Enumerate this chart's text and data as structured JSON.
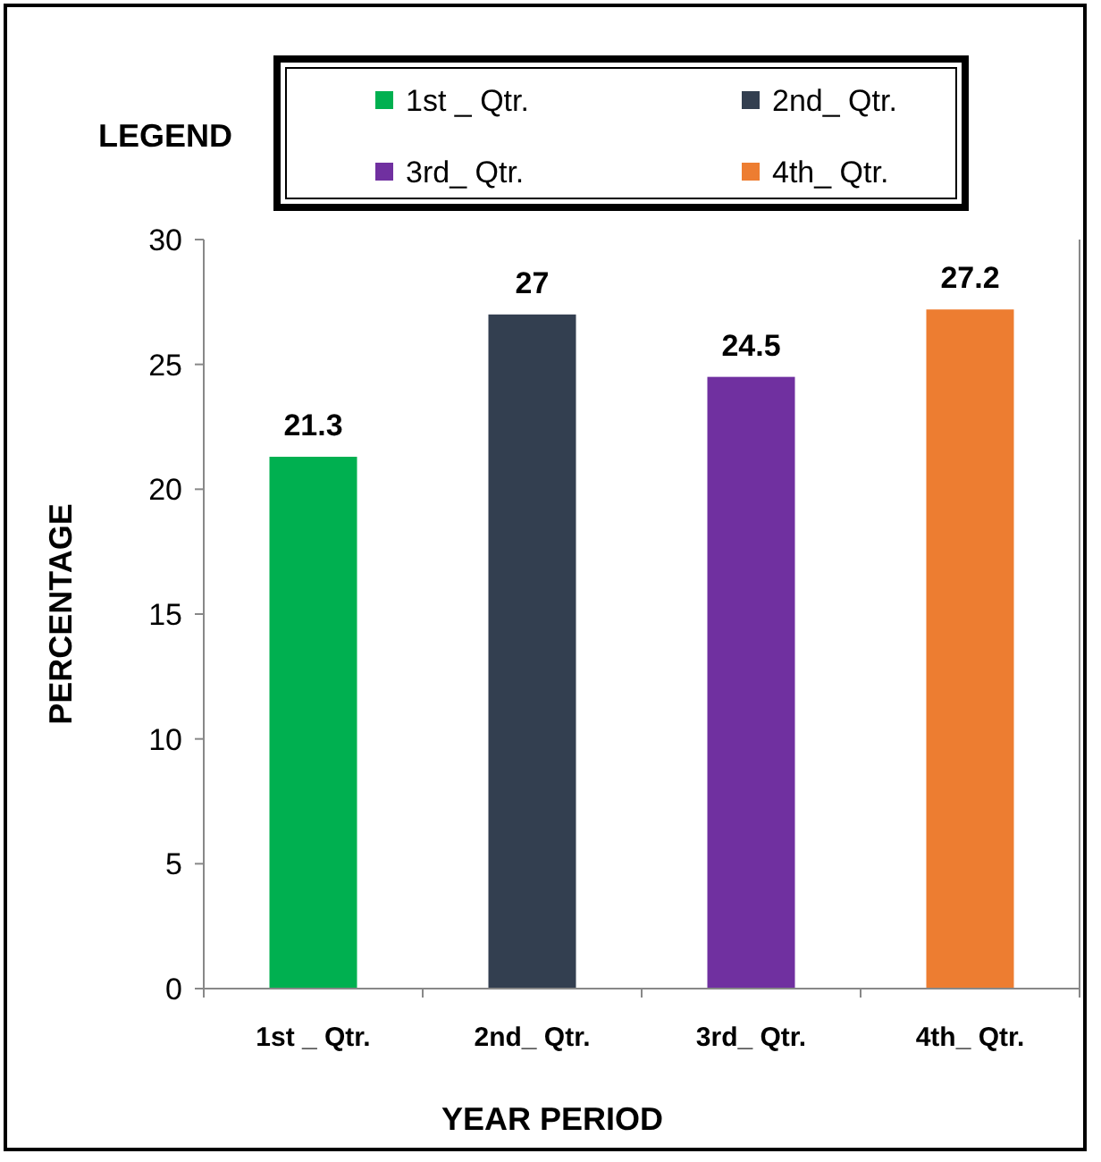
{
  "chart_data": {
    "type": "bar",
    "xlabel": "YEAR PERIOD",
    "ylabel": "PERCENTAGE",
    "legend_title": "LEGEND",
    "legend": "top",
    "categories": [
      "1st _ Qtr.",
      "2nd_ Qtr.",
      "3rd_ Qtr.",
      "4th_ Qtr."
    ],
    "series": [
      {
        "name": "1st _ Qtr.",
        "color": "#00b050",
        "values": [
          21.3,
          null,
          null,
          null
        ]
      },
      {
        "name": "2nd_ Qtr.",
        "color": "#333f50",
        "values": [
          null,
          27,
          null,
          null
        ]
      },
      {
        "name": "3rd_ Qtr.",
        "color": "#7030a0",
        "values": [
          null,
          null,
          24.5,
          null
        ]
      },
      {
        "name": "4th_ Qtr.",
        "color": "#ed7d31",
        "values": [
          null,
          null,
          null,
          27.2
        ]
      }
    ],
    "ylim": [
      0,
      30
    ],
    "yticks": [
      0,
      5,
      10,
      15,
      20,
      25,
      30
    ],
    "data_labels": true
  }
}
